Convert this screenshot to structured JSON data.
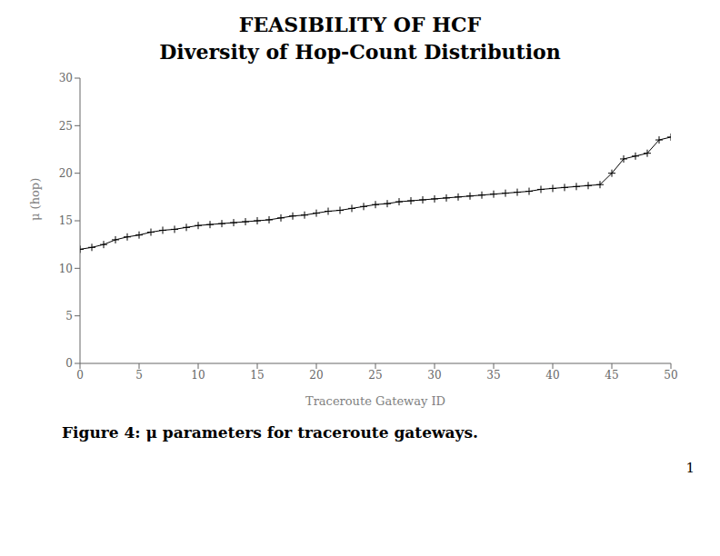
{
  "chart_data": {
    "type": "line",
    "title": "FEASIBILITY OF HCF",
    "subtitle": "Diversity of Hop-Count Distribution",
    "x_label": "Traceroute Gateway ID",
    "y_label": "μ (hop)",
    "x": [
      0,
      1,
      2,
      3,
      4,
      5,
      6,
      7,
      8,
      9,
      10,
      11,
      12,
      13,
      14,
      15,
      16,
      17,
      18,
      19,
      20,
      21,
      22,
      23,
      24,
      25,
      26,
      27,
      28,
      29,
      30,
      31,
      32,
      33,
      34,
      35,
      36,
      37,
      38,
      39,
      40,
      41,
      42,
      43,
      44,
      45,
      46,
      47,
      48,
      49,
      50
    ],
    "values": [
      12.0,
      12.2,
      12.5,
      13.0,
      13.3,
      13.5,
      13.8,
      14.0,
      14.1,
      14.3,
      14.5,
      14.6,
      14.7,
      14.8,
      14.9,
      15.0,
      15.1,
      15.3,
      15.5,
      15.6,
      15.8,
      16.0,
      16.1,
      16.3,
      16.5,
      16.7,
      16.8,
      17.0,
      17.1,
      17.2,
      17.3,
      17.4,
      17.5,
      17.6,
      17.7,
      17.8,
      17.9,
      18.0,
      18.1,
      18.3,
      18.4,
      18.5,
      18.6,
      18.7,
      18.8,
      20.0,
      21.5,
      21.8,
      22.1,
      23.5,
      23.8
    ],
    "color": "#000000",
    "marker": "plus",
    "xlim": [
      0,
      50
    ],
    "ylim": [
      0,
      30
    ],
    "xticks": [
      0,
      5,
      10,
      15,
      20,
      25,
      30,
      35,
      40,
      45,
      50
    ],
    "yticks": [
      0,
      5,
      10,
      15,
      20,
      25,
      30
    ],
    "grid": false,
    "annotations": [
      "Figure 4: μ parameters for traceroute gateways.",
      "1"
    ]
  }
}
